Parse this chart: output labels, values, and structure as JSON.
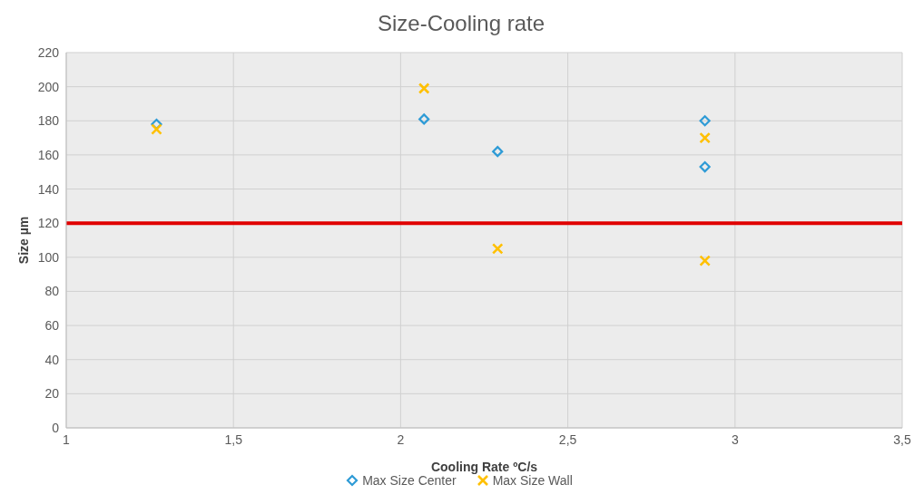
{
  "chart_data": {
    "type": "scatter",
    "title": "Size-Cooling rate",
    "xlabel": "Cooling Rate ºC/s",
    "ylabel": "Size µm",
    "series": [
      {
        "name": "Max Size Center",
        "color": "#2e9bd6",
        "marker": "diamond",
        "x": [
          1.27,
          2.07,
          2.29,
          2.91,
          2.91
        ],
        "values": [
          178,
          181,
          162,
          180,
          153
        ]
      },
      {
        "name": "Max Size Wall",
        "color": "#ffc000",
        "marker": "cross",
        "x": [
          1.27,
          2.07,
          2.29,
          2.91,
          2.91
        ],
        "values": [
          175,
          199,
          105,
          170,
          98
        ]
      }
    ],
    "ref_lines": [
      {
        "axis": "y",
        "value": 120,
        "color": "#e00000"
      }
    ],
    "xlim": [
      1,
      3.5
    ],
    "xticks": [
      1,
      {
        "value": 1.5,
        "label": "1,5"
      },
      2,
      {
        "value": 2.5,
        "label": "2,5"
      },
      3,
      {
        "value": 3.5,
        "label": "3,5"
      }
    ],
    "ylim": [
      0,
      220
    ],
    "yticks": [
      0,
      20,
      40,
      60,
      80,
      100,
      120,
      140,
      160,
      180,
      200,
      220
    ],
    "grid": true,
    "legend": "bottom"
  }
}
